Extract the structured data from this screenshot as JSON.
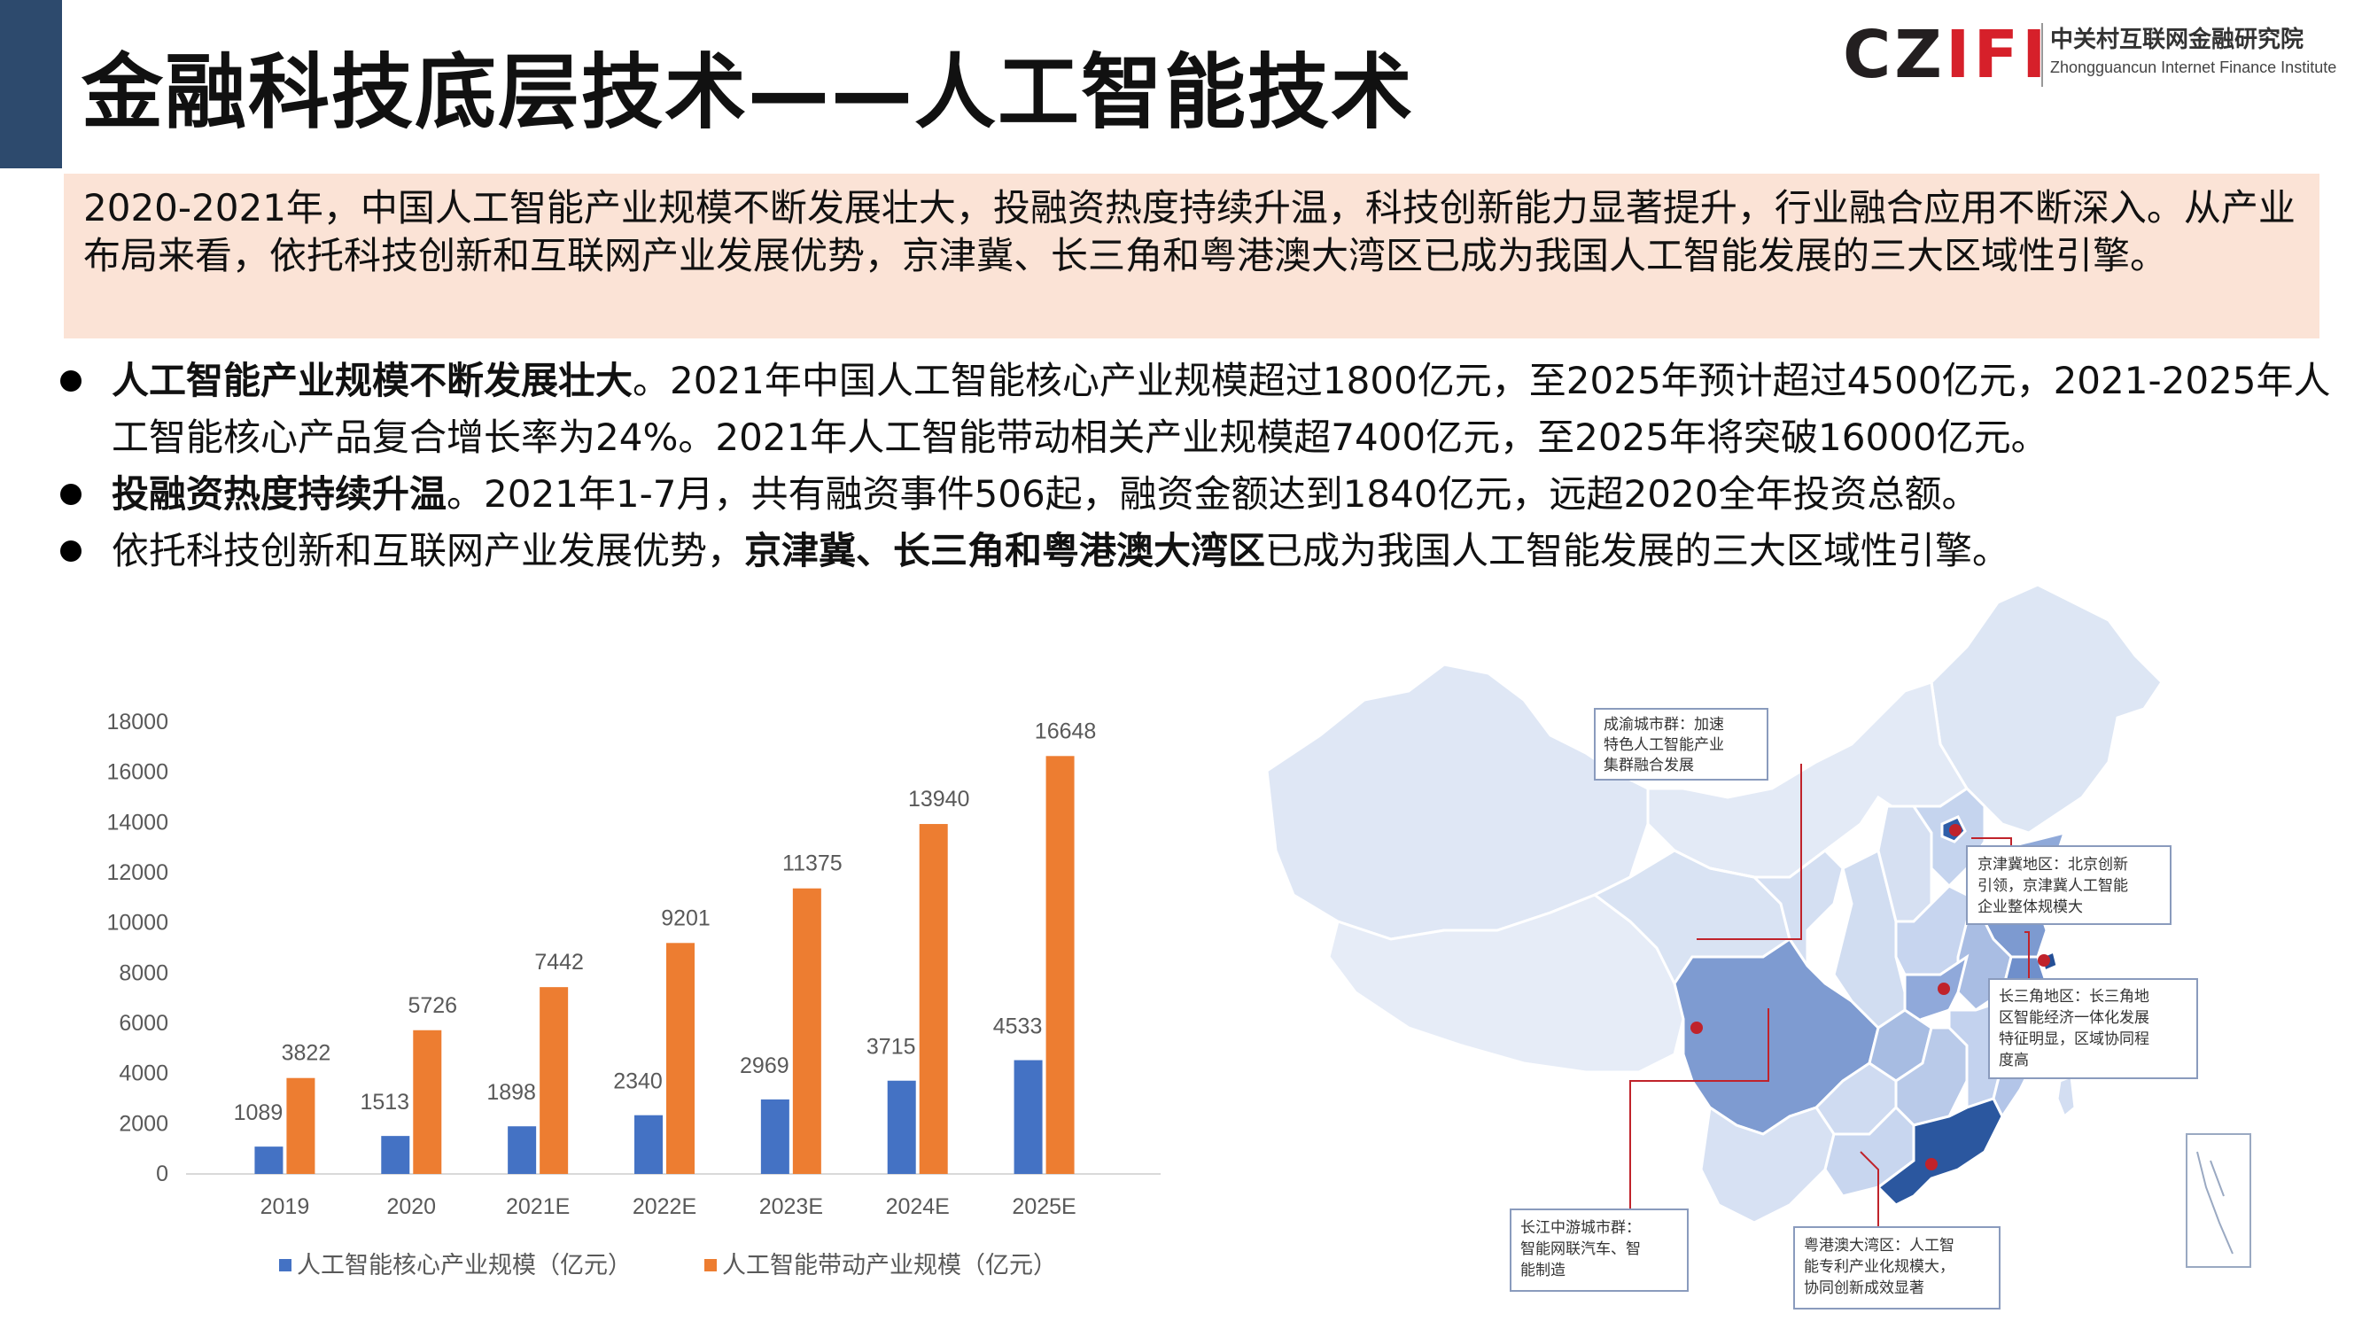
{
  "header": {
    "title": "金融科技底层技术——人工智能技术",
    "logo_mark": "CZIFI",
    "logo_cn": "中关村互联网金融研究院",
    "logo_en": "Zhongguancun Internet Finance Institute"
  },
  "summary": "2020-2021年，中国人工智能产业规模不断发展壮大，投融资热度持续升温，科技创新能力显著提升，行业融合应用不断深入。从产业布局来看，依托科技创新和互联网产业发展优势，京津冀、长三角和粤港澳大湾区已成为我国人工智能发展的三大区域性引擎。",
  "bullets": [
    {
      "bold": "人工智能产业规模不断发展壮大",
      "text": "。2021年中国人工智能核心产业规模超过1800亿元，至2025年预计超过4500亿元，2021-2025年人工智能核心产品复合增长率为24%。2021年人工智能带动相关产业规模超7400亿元，至2025年将突破16000亿元。"
    },
    {
      "bold": "投融资热度持续升温",
      "text": "。2021年1-7月，共有融资事件506起，融资金额达到1840亿元，远超2020全年投资总额。"
    },
    {
      "pre": "依托科技创新和互联网产业发展优势，",
      "bold": "京津冀、长三角和粤港澳大湾区",
      "text": "已成为我国人工智能发展的三大区域性引擎。"
    }
  ],
  "chart_data": {
    "type": "bar",
    "categories": [
      "2019",
      "2020",
      "2021E",
      "2022E",
      "2023E",
      "2024E",
      "2025E"
    ],
    "series": [
      {
        "name": "人工智能核心产业规模（亿元）",
        "values": [
          1089,
          1513,
          1898,
          2340,
          2969,
          3715,
          4533
        ],
        "color": "#4472c4"
      },
      {
        "name": "人工智能带动产业规模（亿元）",
        "values": [
          3822,
          5726,
          7442,
          9201,
          11375,
          13940,
          16648
        ],
        "color": "#ed7d31"
      }
    ],
    "yticks": [
      "0",
      "2000",
      "4000",
      "6000",
      "8000",
      "10000",
      "12000",
      "14000",
      "16000",
      "18000"
    ],
    "ylim": [
      0,
      18000
    ],
    "legend_position": "bottom"
  },
  "map": {
    "callouts": [
      {
        "id": "chengyu",
        "lines": [
          "成渝城市群：加速",
          "特色人工智能产业",
          "集群融合发展"
        ]
      },
      {
        "id": "jingjinji",
        "lines": [
          "京津冀地区：北京创新",
          "引领，京津冀人工智能",
          "企业整体规模大"
        ]
      },
      {
        "id": "changsanjiao",
        "lines": [
          "长三角地区：长三角地",
          "区智能经济一体化发展",
          "特征明显，区域协同程",
          "度高"
        ]
      },
      {
        "id": "changjiang",
        "lines": [
          "长江中游城市群：",
          "智能网联汽车、智",
          "能制造"
        ]
      },
      {
        "id": "yuegangao",
        "lines": [
          "粤港澳大湾区：人工智",
          "能专利产业化规模大，",
          "协同创新成效显著"
        ]
      }
    ]
  }
}
